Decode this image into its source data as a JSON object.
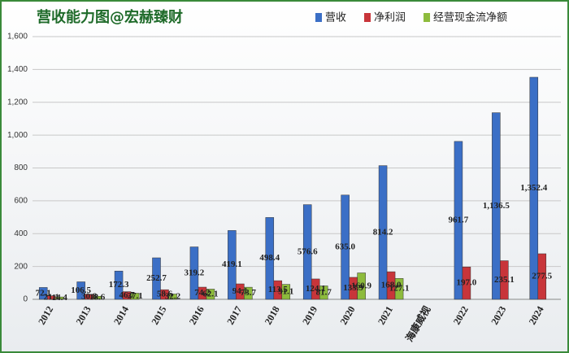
{
  "chart_data": {
    "type": "bar",
    "title": "营收能力图@宏赫臻财",
    "categories": [
      "2012",
      "2013",
      "2014",
      "2015",
      "2016",
      "2017",
      "2018",
      "2019",
      "2020",
      "2021",
      "海康威视",
      "2022",
      "2023",
      "2024"
    ],
    "series": [
      {
        "name": "营收",
        "color": "#3b6fc6",
        "values": [
          72.1,
          106.5,
          172.3,
          252.7,
          319.2,
          419.1,
          498.4,
          576.6,
          635.0,
          814.2,
          null,
          961.7,
          1136.5,
          1352.4
        ],
        "value_labels": [
          "72.1",
          "106.5",
          "172.3",
          "252.7",
          "319.2",
          "419.1",
          "498.4",
          "576.6",
          "635.0",
          "814.2",
          null,
          "961.7",
          "1,136.5",
          "1,352.4"
        ]
      },
      {
        "name": "净利润",
        "color": "#c8353a",
        "values": [
          21.1,
          30.8,
          46.7,
          58.6,
          74.2,
          94.1,
          113.5,
          124.1,
          133.9,
          168.0,
          null,
          197.0,
          235.1,
          277.5
        ],
        "value_labels": [
          "21.1",
          "30.8",
          "46.7",
          "58.6",
          "74.2",
          "94.1",
          "113.5",
          "124.1",
          "133.9",
          "168.0",
          null,
          "197.0",
          "235.1",
          "277.5"
        ]
      },
      {
        "name": "经营现金流净额",
        "color": "#8dbb3c",
        "values": [
          14.4,
          18.6,
          37.1,
          32.2,
          62.1,
          73.7,
          91.1,
          81.7,
          160.9,
          127.1,
          null,
          null,
          null,
          null
        ],
        "value_labels": [
          "14.4",
          "18.6",
          "37.1",
          "32.2",
          "62.1",
          "73.7",
          "91.1",
          "81.7",
          "160.9",
          "127.1",
          null,
          null,
          null,
          null
        ]
      }
    ],
    "ylim": [
      0,
      1600
    ],
    "yticks": [
      0,
      200,
      400,
      600,
      800,
      {
        "value": 1000,
        "label": "1,000"
      },
      {
        "value": 1200,
        "label": "1,200"
      },
      {
        "value": 1400,
        "label": "1,400"
      },
      {
        "value": 1600,
        "label": "1,600"
      }
    ],
    "grid": true
  }
}
